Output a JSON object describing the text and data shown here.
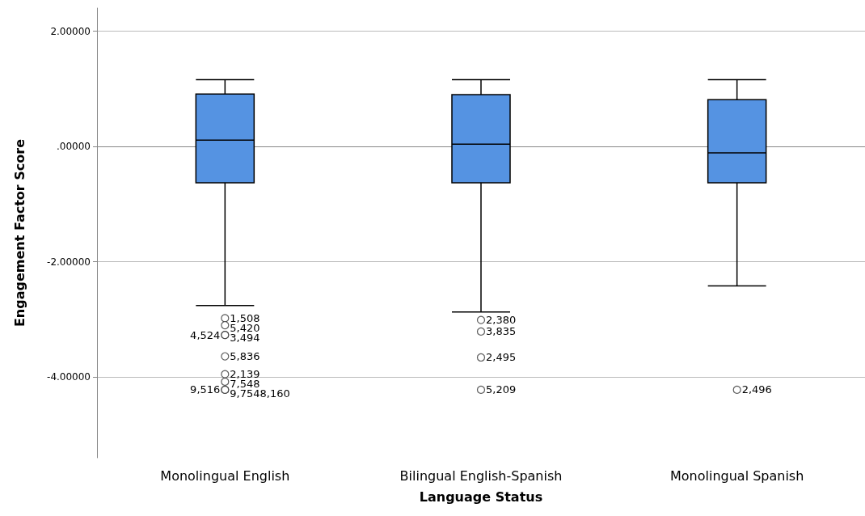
{
  "chart_data": {
    "type": "box",
    "xlabel": "Language Status",
    "ylabel": "Engagement Factor Score",
    "categories": [
      "Monolingual English",
      "Bilingual English-Spanish",
      "Monolingual Spanish"
    ],
    "color": "#5593e2",
    "boxes": [
      {
        "low": -2.76,
        "q1": -0.63,
        "median": 0.11,
        "q3": 0.91,
        "high": 1.16,
        "outliers": [
          -2.98,
          -3.1,
          -3.27,
          -3.27,
          -3.64,
          -3.95,
          -4.08,
          -4.22,
          -4.22
        ]
      },
      {
        "low": -2.87,
        "q1": -0.63,
        "median": 0.04,
        "q3": 0.9,
        "high": 1.16,
        "outliers": [
          -3.01,
          -3.21,
          -3.66,
          -4.22
        ]
      },
      {
        "low": -2.42,
        "q1": -0.63,
        "median": -0.11,
        "q3": 0.81,
        "high": 1.16,
        "outliers": [
          -4.22
        ]
      }
    ],
    "ylim": [
      -5.4,
      2.4
    ],
    "yticks": [
      {
        "value": 2,
        "label": "2.00000"
      },
      {
        "value": 0,
        "label": ".00000"
      },
      {
        "value": -2,
        "label": "-2.00000"
      },
      {
        "value": -4,
        "label": "-4.00000"
      }
    ],
    "grid": "y",
    "annotations": [
      "1,508",
      "5,420",
      "3,494",
      "4,524",
      "5,836",
      "2,139",
      "7,548",
      "9,7548,160",
      "9,516",
      "2,380",
      "3,835",
      "2,495",
      "5,209",
      "2,496"
    ]
  }
}
